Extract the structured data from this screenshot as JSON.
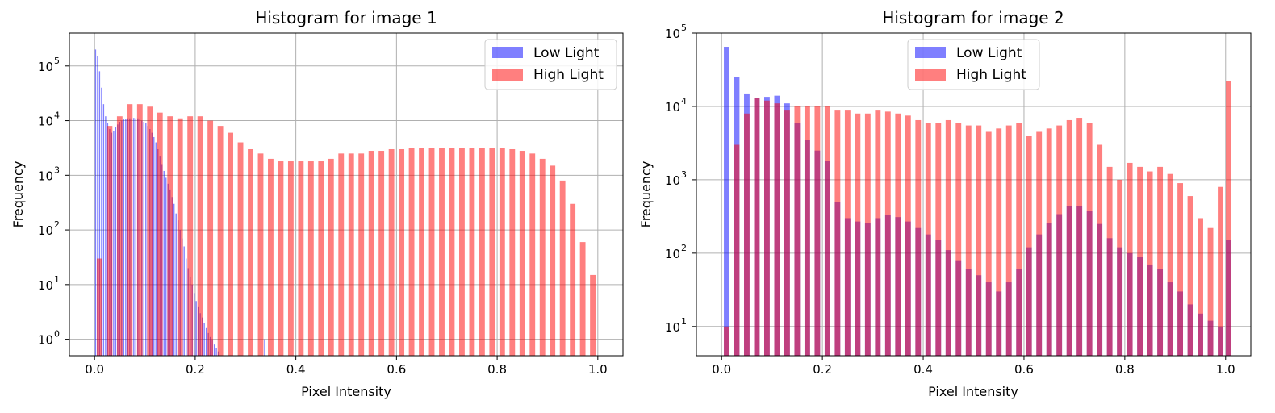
{
  "chart_data": [
    {
      "type": "bar",
      "title": "Histogram for image 1",
      "xlabel": "Pixel Intensity",
      "ylabel": "Frequency",
      "yscale": "log",
      "xlim": [
        -0.05,
        1.05
      ],
      "ylim": [
        0.5,
        400000
      ],
      "grid": true,
      "legend": "top-right",
      "x_ticks": [
        {
          "value": 0.0,
          "label": "0.0"
        },
        {
          "value": 0.2,
          "label": "0.2"
        },
        {
          "value": 0.4,
          "label": "0.4"
        },
        {
          "value": 0.6,
          "label": "0.6"
        },
        {
          "value": 0.8,
          "label": "0.8"
        },
        {
          "value": 1.0,
          "label": "1.0"
        }
      ],
      "y_ticks": [
        {
          "value": 1,
          "base": "10",
          "exp": "0"
        },
        {
          "value": 10,
          "base": "10",
          "exp": "1"
        },
        {
          "value": 100,
          "base": "10",
          "exp": "2"
        },
        {
          "value": 1000,
          "base": "10",
          "exp": "3"
        },
        {
          "value": 10000,
          "base": "10",
          "exp": "4"
        },
        {
          "value": 100000,
          "base": "10",
          "exp": "5"
        }
      ],
      "series": [
        {
          "name": "Low Light",
          "color": "#0000ff",
          "bins": [
            0.0,
            0.004,
            0.008,
            0.012,
            0.016,
            0.02,
            0.024,
            0.028,
            0.032,
            0.036,
            0.04,
            0.044,
            0.048,
            0.052,
            0.056,
            0.06,
            0.064,
            0.068,
            0.072,
            0.076,
            0.08,
            0.084,
            0.088,
            0.092,
            0.096,
            0.1,
            0.104,
            0.108,
            0.112,
            0.116,
            0.12,
            0.124,
            0.128,
            0.132,
            0.136,
            0.14,
            0.144,
            0.148,
            0.152,
            0.156,
            0.16,
            0.164,
            0.168,
            0.172,
            0.176,
            0.18,
            0.184,
            0.188,
            0.192,
            0.196,
            0.2,
            0.204,
            0.208,
            0.212,
            0.216,
            0.22,
            0.224,
            0.228,
            0.232,
            0.236,
            0.24,
            0.244,
            0.336
          ],
          "values": [
            200000,
            150000,
            80000,
            40000,
            20000,
            12000,
            9000,
            7000,
            6000,
            6500,
            7500,
            8500,
            9500,
            10000,
            10500,
            10800,
            11000,
            11000,
            11000,
            11200,
            11000,
            11000,
            10500,
            10000,
            9500,
            9000,
            8000,
            7000,
            6000,
            5000,
            4000,
            3000,
            2200,
            1600,
            1200,
            900,
            700,
            550,
            400,
            300,
            200,
            150,
            100,
            70,
            50,
            30,
            20,
            14,
            10,
            7,
            5,
            4,
            3,
            2.5,
            2,
            1.6,
            1.3,
            1.1,
            1,
            0.8,
            0.7,
            0.6,
            1
          ]
        },
        {
          "name": "High Light",
          "color": "#ff0000",
          "bins": [
            0.0,
            0.02,
            0.04,
            0.06,
            0.08,
            0.1,
            0.12,
            0.14,
            0.16,
            0.18,
            0.2,
            0.22,
            0.24,
            0.26,
            0.28,
            0.3,
            0.32,
            0.34,
            0.36,
            0.38,
            0.4,
            0.42,
            0.44,
            0.46,
            0.48,
            0.5,
            0.52,
            0.54,
            0.56,
            0.58,
            0.6,
            0.62,
            0.64,
            0.66,
            0.68,
            0.7,
            0.72,
            0.74,
            0.76,
            0.78,
            0.8,
            0.82,
            0.84,
            0.86,
            0.88,
            0.9,
            0.92,
            0.94,
            0.96,
            0.98
          ],
          "values": [
            30,
            8000,
            12000,
            20000,
            20000,
            18000,
            14000,
            12000,
            11000,
            12000,
            12000,
            10000,
            8000,
            6000,
            4000,
            3000,
            2500,
            2000,
            1800,
            1800,
            1800,
            1800,
            1800,
            2000,
            2500,
            2500,
            2500,
            2800,
            2800,
            3000,
            3000,
            3200,
            3200,
            3200,
            3200,
            3200,
            3200,
            3200,
            3200,
            3200,
            3200,
            3000,
            2800,
            2500,
            2000,
            1500,
            800,
            300,
            60,
            15
          ]
        }
      ]
    },
    {
      "type": "bar",
      "title": "Histogram for image 2",
      "xlabel": "Pixel Intensity",
      "ylabel": "Frequency",
      "yscale": "log",
      "xlim": [
        -0.05,
        1.05
      ],
      "ylim": [
        4,
        100000
      ],
      "grid": true,
      "legend": "top-center",
      "x_ticks": [
        {
          "value": 0.0,
          "label": "0.0"
        },
        {
          "value": 0.2,
          "label": "0.2"
        },
        {
          "value": 0.4,
          "label": "0.4"
        },
        {
          "value": 0.6,
          "label": "0.6"
        },
        {
          "value": 0.8,
          "label": "0.8"
        },
        {
          "value": 1.0,
          "label": "1.0"
        }
      ],
      "y_ticks": [
        {
          "value": 10,
          "base": "10",
          "exp": "1"
        },
        {
          "value": 100,
          "base": "10",
          "exp": "2"
        },
        {
          "value": 1000,
          "base": "10",
          "exp": "3"
        },
        {
          "value": 10000,
          "base": "10",
          "exp": "4"
        },
        {
          "value": 100000,
          "base": "10",
          "exp": "5"
        }
      ],
      "series": [
        {
          "name": "Low Light",
          "color": "#0000ff",
          "bins": [
            0.0,
            0.02,
            0.04,
            0.06,
            0.08,
            0.1,
            0.12,
            0.14,
            0.16,
            0.18,
            0.2,
            0.22,
            0.24,
            0.26,
            0.28,
            0.3,
            0.32,
            0.34,
            0.36,
            0.38,
            0.4,
            0.42,
            0.44,
            0.46,
            0.48,
            0.5,
            0.52,
            0.54,
            0.56,
            0.58,
            0.6,
            0.62,
            0.64,
            0.66,
            0.68,
            0.7,
            0.72,
            0.74,
            0.76,
            0.78,
            0.8,
            0.82,
            0.84,
            0.86,
            0.88,
            0.9,
            0.92,
            0.94,
            0.96,
            0.98,
            0.996
          ],
          "values": [
            65000,
            25000,
            15000,
            13000,
            13500,
            14000,
            11000,
            6000,
            3500,
            2500,
            1800,
            500,
            300,
            270,
            260,
            300,
            330,
            310,
            270,
            220,
            180,
            150,
            110,
            80,
            60,
            50,
            40,
            30,
            40,
            60,
            120,
            180,
            260,
            340,
            440,
            440,
            380,
            250,
            160,
            120,
            100,
            90,
            70,
            60,
            40,
            30,
            20,
            15,
            12,
            10,
            150
          ]
        },
        {
          "name": "High Light",
          "color": "#ff0000",
          "bins": [
            0.0,
            0.02,
            0.04,
            0.06,
            0.08,
            0.1,
            0.12,
            0.14,
            0.16,
            0.18,
            0.2,
            0.22,
            0.24,
            0.26,
            0.28,
            0.3,
            0.32,
            0.34,
            0.36,
            0.38,
            0.4,
            0.42,
            0.44,
            0.46,
            0.48,
            0.5,
            0.52,
            0.54,
            0.56,
            0.58,
            0.6,
            0.62,
            0.64,
            0.66,
            0.68,
            0.7,
            0.72,
            0.74,
            0.76,
            0.78,
            0.8,
            0.82,
            0.84,
            0.86,
            0.88,
            0.9,
            0.92,
            0.94,
            0.96,
            0.98,
            0.996
          ],
          "values": [
            10,
            3000,
            8000,
            13000,
            12000,
            11000,
            9000,
            10000,
            10000,
            10000,
            10000,
            9000,
            9000,
            8000,
            8000,
            9000,
            8500,
            8000,
            7500,
            6500,
            6000,
            6000,
            6500,
            6000,
            5500,
            5500,
            4500,
            5000,
            5500,
            6000,
            4000,
            4500,
            5000,
            5500,
            6500,
            7000,
            6000,
            3000,
            1500,
            1000,
            1700,
            1500,
            1300,
            1500,
            1200,
            900,
            600,
            300,
            220,
            800,
            22000
          ]
        }
      ]
    }
  ]
}
